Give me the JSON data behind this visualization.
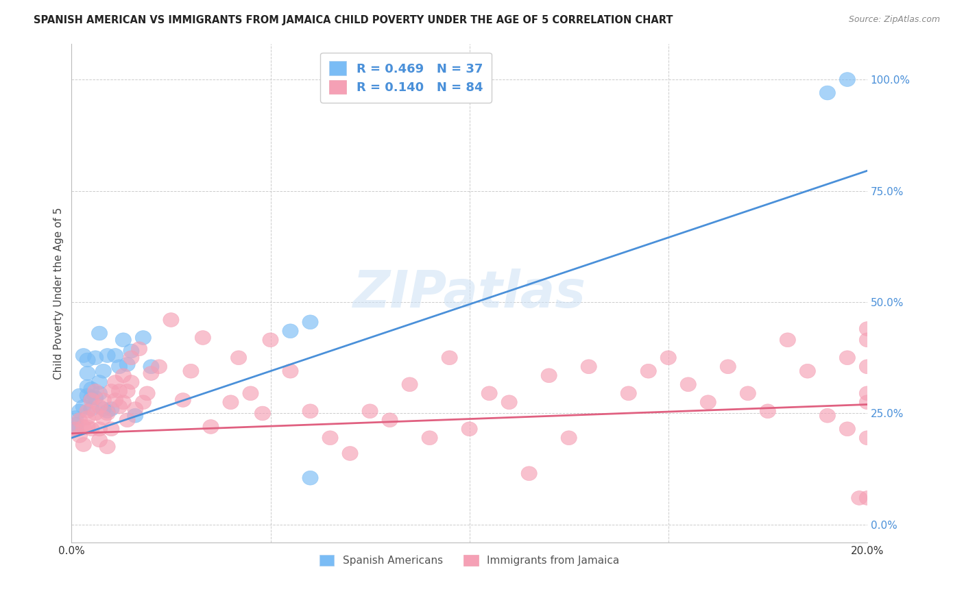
{
  "title": "SPANISH AMERICAN VS IMMIGRANTS FROM JAMAICA CHILD POVERTY UNDER THE AGE OF 5 CORRELATION CHART",
  "source": "Source: ZipAtlas.com",
  "ylabel": "Child Poverty Under the Age of 5",
  "xlim": [
    0.0,
    0.2
  ],
  "ylim": [
    -0.04,
    1.08
  ],
  "yticks": [
    0.0,
    0.25,
    0.5,
    0.75,
    1.0
  ],
  "ytick_labels": [
    "0.0%",
    "25.0%",
    "50.0%",
    "75.0%",
    "100.0%"
  ],
  "xticks": [
    0.0,
    0.05,
    0.1,
    0.15,
    0.2
  ],
  "xtick_labels": [
    "0.0%",
    "",
    "",
    "",
    "20.0%"
  ],
  "legend_r1": "R = 0.469",
  "legend_n1": "N = 37",
  "legend_r2": "R = 0.140",
  "legend_n2": "N = 84",
  "color_blue": "#7abcf5",
  "color_pink": "#f5a0b5",
  "line_color_blue": "#4a90d9",
  "line_color_pink": "#e06080",
  "background": "#ffffff",
  "watermark": "ZIPatlas",
  "title_color": "#222222",
  "axis_label_color": "#444444",
  "tick_color_right": "#4a90d9",
  "blue_line_x0": 0.0,
  "blue_line_y0": 0.195,
  "blue_line_x1": 0.2,
  "blue_line_y1": 0.795,
  "pink_line_x0": 0.0,
  "pink_line_y0": 0.205,
  "pink_line_x1": 0.2,
  "pink_line_y1": 0.27,
  "spanish_x": [
    0.001,
    0.001,
    0.001,
    0.002,
    0.002,
    0.003,
    0.003,
    0.004,
    0.004,
    0.004,
    0.004,
    0.005,
    0.005,
    0.005,
    0.006,
    0.006,
    0.007,
    0.007,
    0.007,
    0.008,
    0.008,
    0.009,
    0.009,
    0.01,
    0.011,
    0.012,
    0.013,
    0.014,
    0.015,
    0.016,
    0.018,
    0.02,
    0.055,
    0.06,
    0.06,
    0.19,
    0.195
  ],
  "spanish_y": [
    0.215,
    0.225,
    0.24,
    0.255,
    0.29,
    0.265,
    0.38,
    0.29,
    0.31,
    0.34,
    0.37,
    0.26,
    0.285,
    0.305,
    0.285,
    0.375,
    0.295,
    0.32,
    0.43,
    0.26,
    0.345,
    0.255,
    0.38,
    0.26,
    0.38,
    0.355,
    0.415,
    0.36,
    0.39,
    0.245,
    0.42,
    0.355,
    0.435,
    0.455,
    0.105,
    0.97,
    1.0
  ],
  "jamaica_x": [
    0.001,
    0.002,
    0.002,
    0.003,
    0.003,
    0.004,
    0.004,
    0.004,
    0.005,
    0.005,
    0.006,
    0.006,
    0.007,
    0.007,
    0.007,
    0.008,
    0.008,
    0.009,
    0.009,
    0.01,
    0.01,
    0.011,
    0.011,
    0.012,
    0.012,
    0.013,
    0.013,
    0.014,
    0.014,
    0.015,
    0.015,
    0.016,
    0.017,
    0.018,
    0.019,
    0.02,
    0.022,
    0.025,
    0.028,
    0.03,
    0.033,
    0.035,
    0.04,
    0.042,
    0.045,
    0.048,
    0.05,
    0.055,
    0.06,
    0.065,
    0.07,
    0.075,
    0.08,
    0.085,
    0.09,
    0.095,
    0.1,
    0.105,
    0.11,
    0.115,
    0.12,
    0.125,
    0.13,
    0.14,
    0.145,
    0.15,
    0.155,
    0.16,
    0.165,
    0.17,
    0.175,
    0.18,
    0.185,
    0.19,
    0.195,
    0.195,
    0.198,
    0.2,
    0.2,
    0.2,
    0.2,
    0.2,
    0.2,
    0.2
  ],
  "jamaica_y": [
    0.215,
    0.235,
    0.2,
    0.22,
    0.18,
    0.255,
    0.24,
    0.22,
    0.28,
    0.215,
    0.3,
    0.25,
    0.265,
    0.215,
    0.19,
    0.24,
    0.28,
    0.25,
    0.175,
    0.3,
    0.215,
    0.32,
    0.28,
    0.265,
    0.3,
    0.335,
    0.275,
    0.3,
    0.235,
    0.375,
    0.32,
    0.26,
    0.395,
    0.275,
    0.295,
    0.34,
    0.355,
    0.46,
    0.28,
    0.345,
    0.42,
    0.22,
    0.275,
    0.375,
    0.295,
    0.25,
    0.415,
    0.345,
    0.255,
    0.195,
    0.16,
    0.255,
    0.235,
    0.315,
    0.195,
    0.375,
    0.215,
    0.295,
    0.275,
    0.115,
    0.335,
    0.195,
    0.355,
    0.295,
    0.345,
    0.375,
    0.315,
    0.275,
    0.355,
    0.295,
    0.255,
    0.415,
    0.345,
    0.245,
    0.375,
    0.215,
    0.06,
    0.295,
    0.44,
    0.195,
    0.275,
    0.355,
    0.06,
    0.415
  ]
}
